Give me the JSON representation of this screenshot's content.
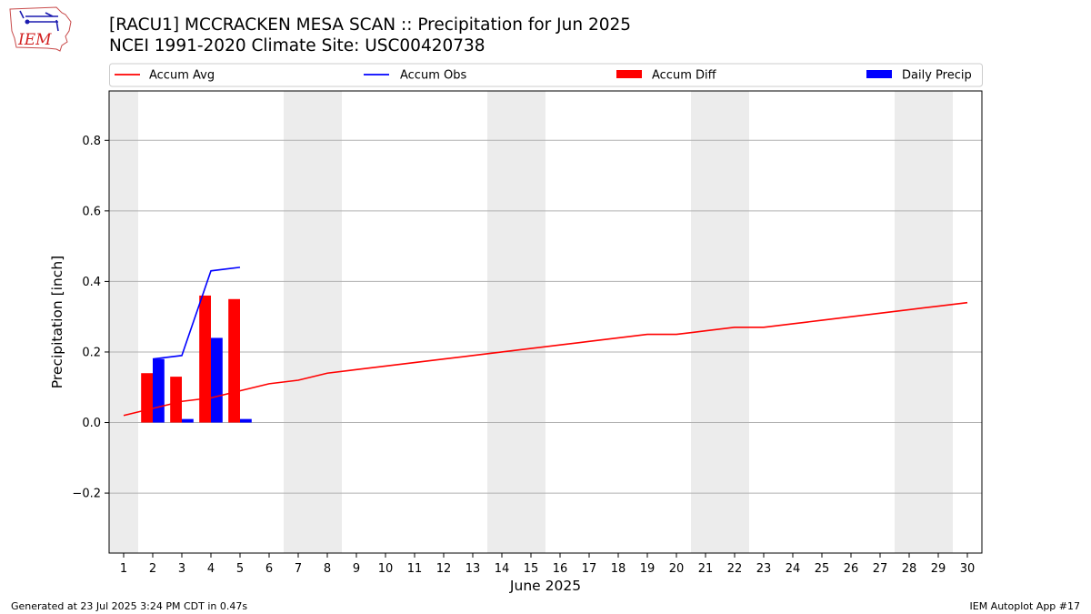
{
  "header": {
    "title_line1": "[RACU1] MCCRACKEN MESA SCAN :: Precipitation for Jun 2025",
    "title_line2": "NCEI 1991-2020 Climate Site: USC00420738",
    "logo_text": "IEM"
  },
  "footer": {
    "generated": "Generated at 23 Jul 2025 3:24 PM CDT in 0.47s",
    "app": "IEM Autoplot App #17"
  },
  "chart_data": {
    "type": "bar",
    "xlabel": "June 2025",
    "ylabel": "Precipitation [inch]",
    "xlim": [
      0.5,
      30.5
    ],
    "ylim": [
      -0.37,
      0.94
    ],
    "yticks": [
      -0.2,
      0.0,
      0.2,
      0.4,
      0.6,
      0.8
    ],
    "ytick_labels": [
      "−0.2",
      "0.0",
      "0.2",
      "0.4",
      "0.6",
      "0.8"
    ],
    "xticks": [
      1,
      2,
      3,
      4,
      5,
      6,
      7,
      8,
      9,
      10,
      11,
      12,
      13,
      14,
      15,
      16,
      17,
      18,
      19,
      20,
      21,
      22,
      23,
      24,
      25,
      26,
      27,
      28,
      29,
      30
    ],
    "grid": "horizontal",
    "legend_placement": "top",
    "weekend_shading": [
      [
        0.5,
        1.5
      ],
      [
        6.5,
        8.5
      ],
      [
        13.5,
        15.5
      ],
      [
        20.5,
        22.5
      ],
      [
        27.5,
        29.5
      ]
    ],
    "series": [
      {
        "name": "Accum Avg",
        "kind": "line",
        "color": "#ff0000",
        "x": [
          1,
          2,
          3,
          4,
          5,
          6,
          7,
          8,
          9,
          10,
          11,
          12,
          13,
          14,
          15,
          16,
          17,
          18,
          19,
          20,
          21,
          22,
          23,
          24,
          25,
          26,
          27,
          28,
          29,
          30
        ],
        "values": [
          0.02,
          0.04,
          0.06,
          0.07,
          0.09,
          0.11,
          0.12,
          0.14,
          0.15,
          0.16,
          0.17,
          0.18,
          0.19,
          0.2,
          0.21,
          0.22,
          0.23,
          0.24,
          0.25,
          0.25,
          0.26,
          0.27,
          0.27,
          0.28,
          0.29,
          0.3,
          0.31,
          0.32,
          0.33,
          0.34
        ]
      },
      {
        "name": "Accum Obs",
        "kind": "line",
        "color": "#0000ff",
        "x": [
          2,
          3,
          4,
          5
        ],
        "values": [
          0.18,
          0.19,
          0.43,
          0.44
        ]
      },
      {
        "name": "Accum Diff",
        "kind": "bar",
        "color": "#ff0000",
        "offset": -0.2,
        "x": [
          2,
          3,
          4,
          5
        ],
        "values": [
          0.14,
          0.13,
          0.36,
          0.35
        ]
      },
      {
        "name": "Daily Precip",
        "kind": "bar",
        "color": "#0000ff",
        "offset": 0.2,
        "x": [
          2,
          3,
          4,
          5
        ],
        "values": [
          0.18,
          0.01,
          0.24,
          0.01
        ]
      }
    ]
  }
}
